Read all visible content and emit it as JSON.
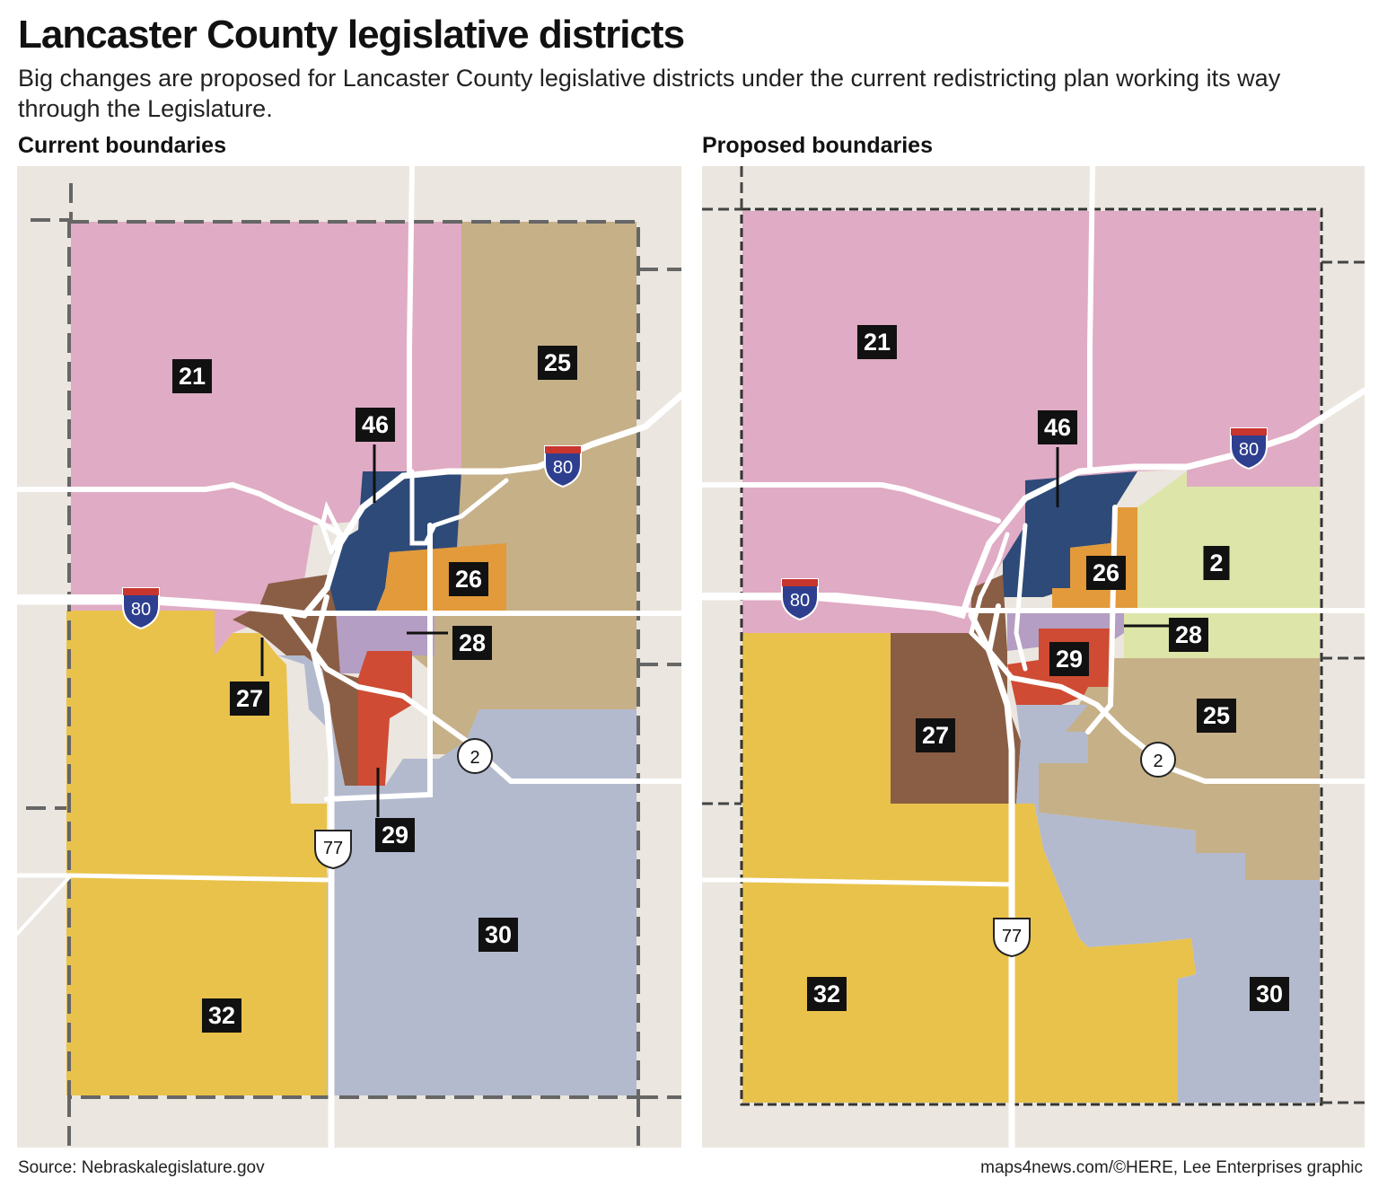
{
  "header": {
    "title": "Lancaster County legislative districts",
    "subtitle": "Big changes are proposed for Lancaster County legislative districts under the current redistricting plan working its way through the Legislature."
  },
  "current": {
    "heading": "Current boundaries",
    "labels": {
      "d21": "21",
      "d25": "25",
      "d46": "46",
      "d26": "26",
      "d28": "28",
      "d27": "27",
      "d29": "29",
      "d30": "30",
      "d32": "32"
    },
    "shields": {
      "i80": "80",
      "us77": "77",
      "ne2": "2"
    }
  },
  "proposed": {
    "heading": "Proposed boundaries",
    "labels": {
      "d21": "21",
      "d46": "46",
      "d26": "26",
      "d2": "2",
      "d28": "28",
      "d29": "29",
      "d27": "27",
      "d25": "25",
      "d32": "32",
      "d30": "30"
    },
    "shields": {
      "i80a": "80",
      "i80b": "80",
      "us77": "77",
      "ne2": "2"
    }
  },
  "footer": {
    "source": "Source: Nebraskalegislature.gov",
    "credit": "maps4news.com/©HERE, Lee Enterprises graphic"
  },
  "colors": {
    "d21": "#e0abc4",
    "d25": "#c6b088",
    "d46": "#2e4a78",
    "d26": "#e29a3a",
    "d28": "#b49ec3",
    "d27": "#8a5e45",
    "d29": "#cf4b33",
    "d30": "#b3bace",
    "d32": "#e9c24b",
    "d2": "#dde5a8",
    "background": "#ebe6df",
    "road": "#ffffff"
  }
}
